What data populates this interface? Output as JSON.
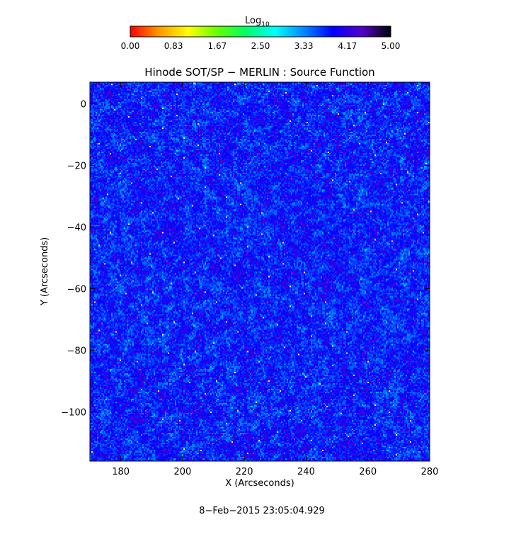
{
  "chart_data": {
    "type": "heatmap",
    "title": "Hinode SOT/SP − MERLIN : Source Function",
    "xlabel": "X (Arcseconds)",
    "ylabel": "Y (Arcseconds)",
    "xlim": [
      170,
      280
    ],
    "ylim": [
      -116,
      7
    ],
    "x_ticks": [
      "180",
      "200",
      "220",
      "240",
      "260",
      "280"
    ],
    "x_tick_values": [
      180,
      200,
      220,
      240,
      260,
      280
    ],
    "y_ticks": [
      "0",
      "−20",
      "−40",
      "−60",
      "−80",
      "−100"
    ],
    "y_tick_values": [
      0,
      -20,
      -40,
      -60,
      -80,
      -100
    ],
    "colorbar": {
      "title_base": "Log",
      "title_sub": "10",
      "range": [
        0,
        5
      ],
      "tick_labels": [
        "0.00",
        "0.83",
        "1.67",
        "2.50",
        "3.33",
        "4.17",
        "5.00"
      ],
      "tick_values": [
        0,
        0.83,
        1.67,
        2.5,
        3.33,
        4.17,
        5.0
      ],
      "colors": [
        "#ff0000",
        "#ff9900",
        "#ffff00",
        "#66ff00",
        "#00ff66",
        "#00ffff",
        "#0088ff",
        "#0000ff",
        "#5500cc",
        "#000000"
      ]
    },
    "value_distribution": "values mostly between 3.3 and 4.6 (blue), scattered low values near 2.5-3.0 (cyan/green), occasional near-white saturated pixels",
    "grid": false
  },
  "footer": {
    "timestamp": "8−Feb−2015 23:05:04.929"
  }
}
